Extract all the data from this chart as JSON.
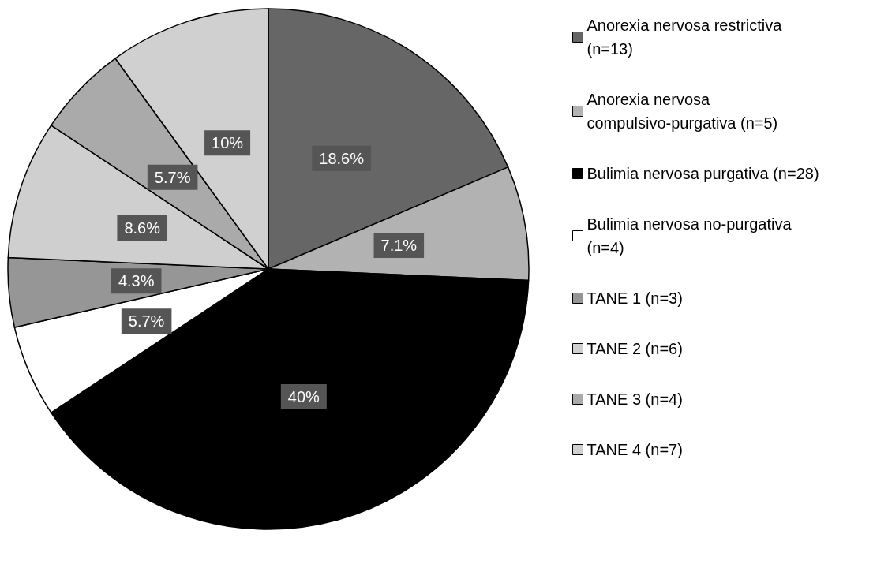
{
  "chart_data": {
    "type": "pie",
    "categories": [
      "Anorexia nervosa restrictiva (n=13)",
      "Anorexia nervosa compulsivo-purgativa (n=5)",
      "Bulimia nervosa purgativa (n=28)",
      "Bulimia nervosa no-purgativa (n=4)",
      "TANE 1 (n=3)",
      "TANE 2 (n=6)",
      "TANE 3 (n=4)",
      "TANE 4 (n=7)"
    ],
    "values": [
      18.6,
      7.1,
      40,
      5.7,
      4.3,
      8.6,
      5.7,
      10
    ],
    "value_labels": [
      "18.6%",
      "7.1%",
      "40%",
      "5.7%",
      "4.3%",
      "8.6%",
      "5.7%",
      "10%"
    ],
    "colors": [
      "#666666",
      "#b2b2b2",
      "#000000",
      "#ffffff",
      "#969696",
      "#cfcfcf",
      "#aaaaaa",
      "#d0d0d0"
    ],
    "legend": "right"
  }
}
